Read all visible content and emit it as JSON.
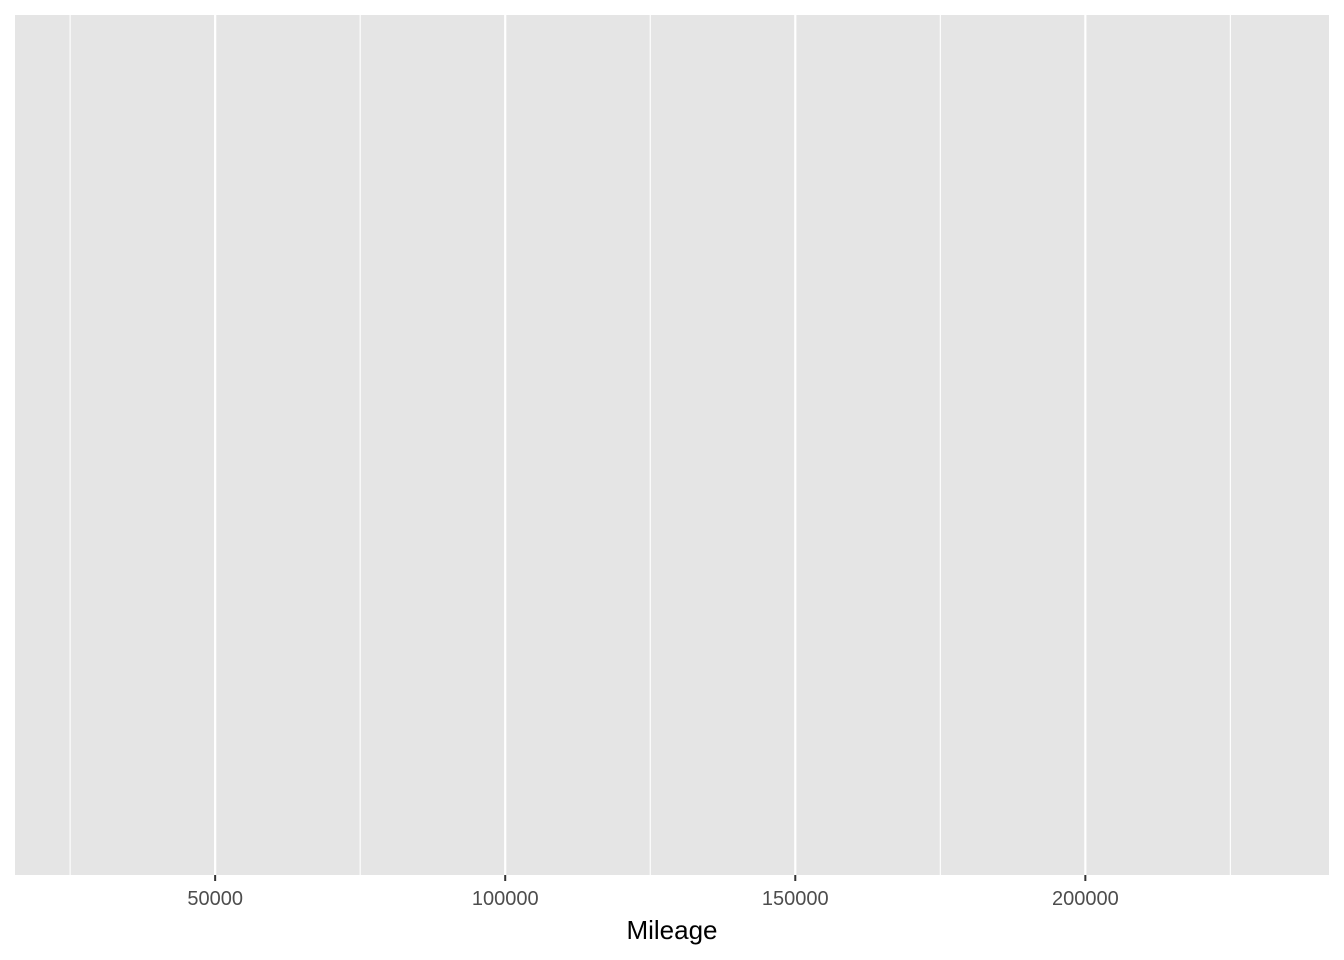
{
  "chart_data": {
    "type": "scatter",
    "title": "",
    "xlabel": "Mileage",
    "ylabel": "",
    "xlim": [
      15500,
      242000
    ],
    "x_major_ticks": [
      50000,
      100000,
      150000,
      200000
    ],
    "x_tick_labels": [
      "50000",
      "100000",
      "150000",
      "200000"
    ],
    "x_minor_ticks": [
      25000,
      75000,
      125000,
      175000,
      225000
    ],
    "y_ticks": [],
    "series": [],
    "grid": true,
    "legend": "none",
    "colors": {
      "panel_background": "#e5e5e5",
      "grid_line": "#ffffff",
      "tick_mark": "#333333",
      "tick_label": "#4d4d4d",
      "axis_title": "#000000"
    }
  }
}
